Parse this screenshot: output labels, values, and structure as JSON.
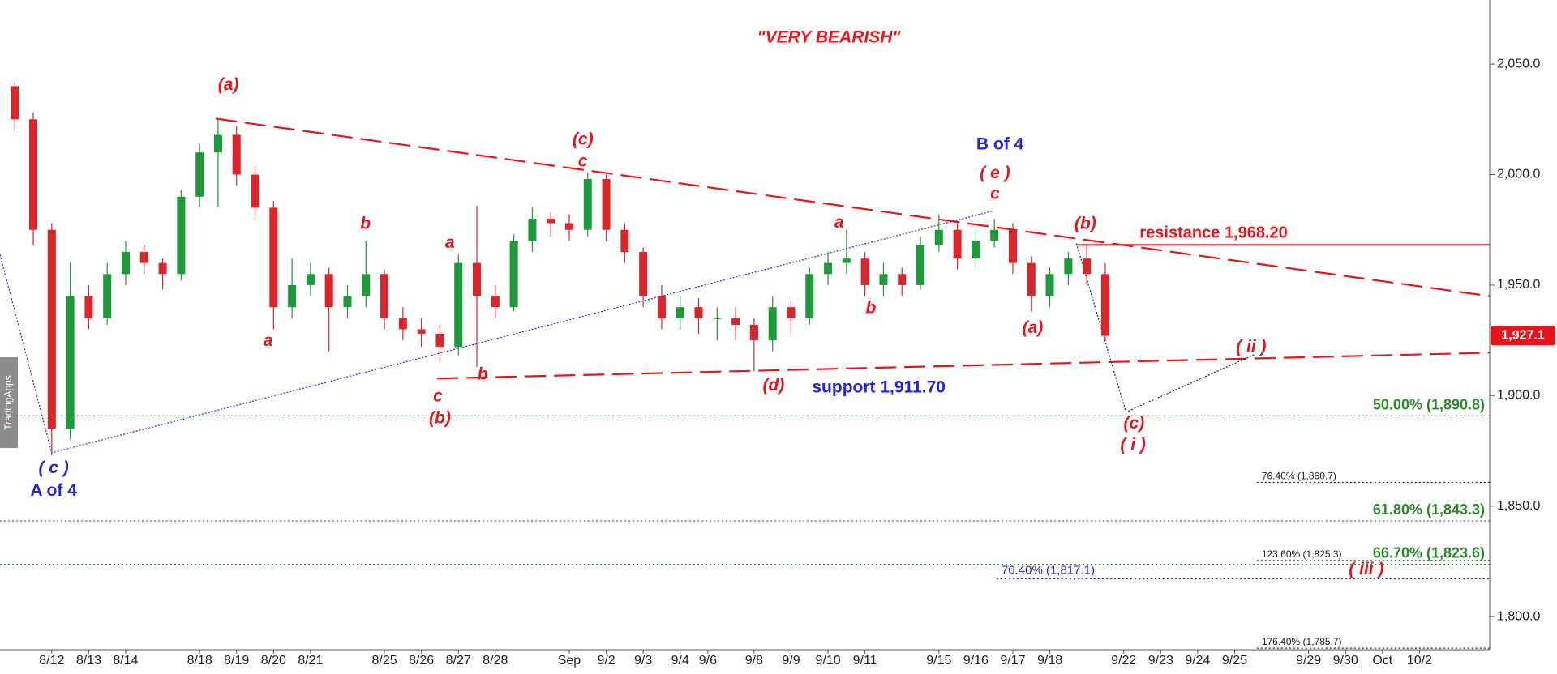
{
  "chart_data": {
    "type": "candlestick",
    "title": "\"VERY BEARISH\"",
    "title_color": "#e8141a",
    "watermark": "TradingApps",
    "up_color": "#1f9a3a",
    "down_color": "#d8262b",
    "x": [
      0,
      0.5,
      1,
      1.5,
      2,
      2.5,
      3,
      3.5,
      4,
      4.5,
      5,
      5.5,
      6,
      6.5,
      7,
      7.5,
      8,
      8.5,
      9,
      9.5,
      10,
      10.5,
      11,
      11.5,
      12,
      12.5,
      13,
      13.5,
      14,
      14.5,
      15,
      15.5,
      16,
      16.5,
      17,
      17.5,
      18,
      18.5,
      19,
      19.5,
      20,
      20.5,
      21,
      21.5,
      22,
      22.5,
      23,
      23.5,
      24,
      24.5,
      25,
      25.5,
      26,
      26.5,
      27,
      27.5,
      28,
      28.5,
      29,
      29.5
    ],
    "open": [
      2040,
      2025,
      1975,
      1885,
      1945,
      1935,
      1955,
      1965,
      1960,
      1955,
      1990,
      2010,
      2018,
      2000,
      1985,
      1940,
      1950,
      1955,
      1940,
      1945,
      1955,
      1935,
      1930,
      1928,
      1922,
      1960,
      1945,
      1940,
      1970,
      1980,
      1978,
      1975,
      1998,
      1975,
      1965,
      1945,
      1935,
      1940,
      1935,
      1935,
      1932,
      1925,
      1940,
      1935,
      1955,
      1960,
      1962,
      1950,
      1955,
      1950,
      1968,
      1975,
      1962,
      1970,
      1975,
      1960,
      1945,
      1955,
      1962,
      1955
    ],
    "high": [
      2042,
      2028,
      1978,
      1960,
      1950,
      1960,
      1970,
      1968,
      1962,
      1993,
      2014,
      2025,
      2022,
      2004,
      1988,
      1962,
      1960,
      1958,
      1950,
      1970,
      1957,
      1940,
      1935,
      1932,
      1964,
      1986,
      1950,
      1973,
      1985,
      1983,
      1982,
      2001,
      2000,
      1978,
      1967,
      1950,
      1945,
      1944,
      1940,
      1940,
      1935,
      1945,
      1943,
      1958,
      1965,
      1975,
      1965,
      1960,
      1958,
      1972,
      1982,
      1978,
      1974,
      1980,
      1978,
      1963,
      1958,
      1965,
      1968,
      1960
    ],
    "low": [
      2020,
      1968,
      1873,
      1880,
      1930,
      1932,
      1950,
      1955,
      1948,
      1952,
      1985,
      1985,
      1995,
      1980,
      1930,
      1935,
      1945,
      1920,
      1935,
      1940,
      1930,
      1925,
      1922,
      1915,
      1918,
      1913,
      1935,
      1938,
      1965,
      1972,
      1970,
      1972,
      1970,
      1960,
      1940,
      1930,
      1930,
      1928,
      1925,
      1925,
      1911,
      1920,
      1928,
      1932,
      1950,
      1955,
      1945,
      1945,
      1945,
      1948,
      1965,
      1957,
      1958,
      1967,
      1955,
      1938,
      1940,
      1950,
      1950,
      1925
    ],
    "close": [
      2025,
      1975,
      1885,
      1945,
      1935,
      1955,
      1965,
      1960,
      1955,
      1990,
      2010,
      2018,
      2000,
      1985,
      1940,
      1950,
      1955,
      1940,
      1945,
      1955,
      1935,
      1930,
      1928,
      1922,
      1960,
      1945,
      1940,
      1970,
      1980,
      1978,
      1975,
      1998,
      1975,
      1965,
      1945,
      1935,
      1940,
      1935,
      1935,
      1932,
      1925,
      1940,
      1935,
      1955,
      1960,
      1962,
      1950,
      1955,
      1950,
      1968,
      1975,
      1962,
      1970,
      1975,
      1960,
      1945,
      1955,
      1962,
      1955,
      1927
    ],
    "xlim": [
      -0.4,
      39.9
    ],
    "xticks": [
      {
        "value": 1,
        "label": "8/12"
      },
      {
        "value": 2,
        "label": "8/13"
      },
      {
        "value": 3,
        "label": "8/14"
      },
      {
        "value": 5,
        "label": "8/18"
      },
      {
        "value": 6,
        "label": "8/19"
      },
      {
        "value": 7,
        "label": "8/20"
      },
      {
        "value": 8,
        "label": "8/21"
      },
      {
        "value": 10,
        "label": "8/25"
      },
      {
        "value": 11,
        "label": "8/26"
      },
      {
        "value": 12,
        "label": "8/27"
      },
      {
        "value": 13,
        "label": "8/28"
      },
      {
        "value": 15,
        "label": "Sep"
      },
      {
        "value": 16,
        "label": "9/2"
      },
      {
        "value": 17,
        "label": "9/3"
      },
      {
        "value": 18,
        "label": "9/4"
      },
      {
        "value": 18.75,
        "label": "9/6"
      },
      {
        "value": 20,
        "label": "9/8"
      },
      {
        "value": 21,
        "label": "9/9"
      },
      {
        "value": 22,
        "label": "9/10"
      },
      {
        "value": 23,
        "label": "9/11"
      },
      {
        "value": 25,
        "label": "9/15"
      },
      {
        "value": 26,
        "label": "9/16"
      },
      {
        "value": 27,
        "label": "9/17"
      },
      {
        "value": 28,
        "label": "9/18"
      },
      {
        "value": 30,
        "label": "9/22"
      },
      {
        "value": 31,
        "label": "9/23"
      },
      {
        "value": 32,
        "label": "9/24"
      },
      {
        "value": 33,
        "label": "9/25"
      },
      {
        "value": 35,
        "label": "9/29"
      },
      {
        "value": 36,
        "label": "9/30"
      },
      {
        "value": 37,
        "label": "Oct"
      },
      {
        "value": 38,
        "label": "10/2"
      }
    ],
    "ylim": [
      1785,
      2079
    ],
    "yticks": [
      {
        "value": 1800,
        "label": "1,800.0"
      },
      {
        "value": 1850,
        "label": "1,850.0"
      },
      {
        "value": 1900,
        "label": "1,900.0"
      },
      {
        "value": 1950,
        "label": "1,950.0"
      },
      {
        "value": 2000,
        "label": "2,000.0"
      },
      {
        "value": 2050,
        "label": "2,050.0"
      }
    ],
    "last_price": {
      "value": 1927.1,
      "label": "1,927.1"
    },
    "last_price_color": "#e8141a",
    "resistance": {
      "label": "resistance 1,968.20",
      "value": 1968.2,
      "from": 28.72,
      "color": "#e8141a"
    },
    "levels": [
      {
        "label": "50.00% (1,890.8)",
        "value": 1890.8,
        "color": "#2a8a2a"
      },
      {
        "label": "76.40% (1,860.7)",
        "value": 1860.7,
        "color": "#222222",
        "from": 33.6
      },
      {
        "label": "61.80% (1,843.3)",
        "value": 1843.3,
        "color": "#2a8a2a"
      },
      {
        "label": "123.60% (1,825.3)",
        "value": 1825.3,
        "color": "#222222",
        "from": 33.6
      },
      {
        "label": "66.70% (1,823.6)",
        "value": 1823.6,
        "color": "#2a8a2a"
      },
      {
        "label": "76.40% (1,817.1)",
        "value": 1817.1,
        "color": "#2424e0",
        "from": 26.56
      },
      {
        "label": "176.40% (1,785.7)",
        "value": 1785.7,
        "color": "#222222",
        "from": 33.6
      }
    ],
    "trendlines": [
      {
        "x": [
          5.44,
          39.9
        ],
        "y": [
          2025.3,
          1945.0
        ],
        "color": "#e8141a",
        "dash": "long"
      },
      {
        "x": [
          11.43,
          39.9
        ],
        "y": [
          1907.7,
          1919.4
        ],
        "color": "#e8141a",
        "dash": "long"
      },
      {
        "x": [
          -0.4,
          1,
          26.48
        ],
        "y": [
          1963.8,
          1874.1,
          1983.6
        ],
        "color": "#2424e0",
        "dash": "dotted"
      },
      {
        "x": [
          28.72,
          30.06,
          33.53
        ],
        "y": [
          1968.8,
          1892.5,
          1918.5
        ],
        "color": "#222222",
        "dash": "dotted"
      }
    ],
    "annotations": [
      {
        "text": "(a)",
        "color": "#e8141a"
      },
      {
        "text": "(c)",
        "color": "#e8141a"
      },
      {
        "text": "c",
        "color": "#e8141a"
      },
      {
        "text": "B of 4",
        "color": "#2424e0"
      },
      {
        "text": "( e )",
        "color": "#e8141a"
      },
      {
        "text": "c",
        "color": "#e8141a"
      },
      {
        "text": "b",
        "color": "#e8141a"
      },
      {
        "text": "a",
        "color": "#e8141a"
      },
      {
        "text": "a",
        "color": "#e8141a"
      },
      {
        "text": "(b)",
        "color": "#e8141a"
      },
      {
        "text": "a",
        "color": "#e8141a"
      },
      {
        "text": "b",
        "color": "#e8141a"
      },
      {
        "text": "(a)",
        "color": "#e8141a"
      },
      {
        "text": "( ii )",
        "color": "#e8141a"
      },
      {
        "text": "c",
        "color": "#e8141a"
      },
      {
        "text": "b",
        "color": "#e8141a"
      },
      {
        "text": "(b)",
        "color": "#e8141a"
      },
      {
        "text": "(d)",
        "color": "#e8141a"
      },
      {
        "text": "support 1,911.70",
        "color": "#2424e0"
      },
      {
        "text": "(c)",
        "color": "#e8141a"
      },
      {
        "text": "( i )",
        "color": "#e8141a"
      },
      {
        "text": "( c )",
        "color": "#2424e0"
      },
      {
        "text": "A of 4",
        "color": "#2424e0"
      },
      {
        "text": "( iii )",
        "color": "#e8141a"
      }
    ]
  }
}
